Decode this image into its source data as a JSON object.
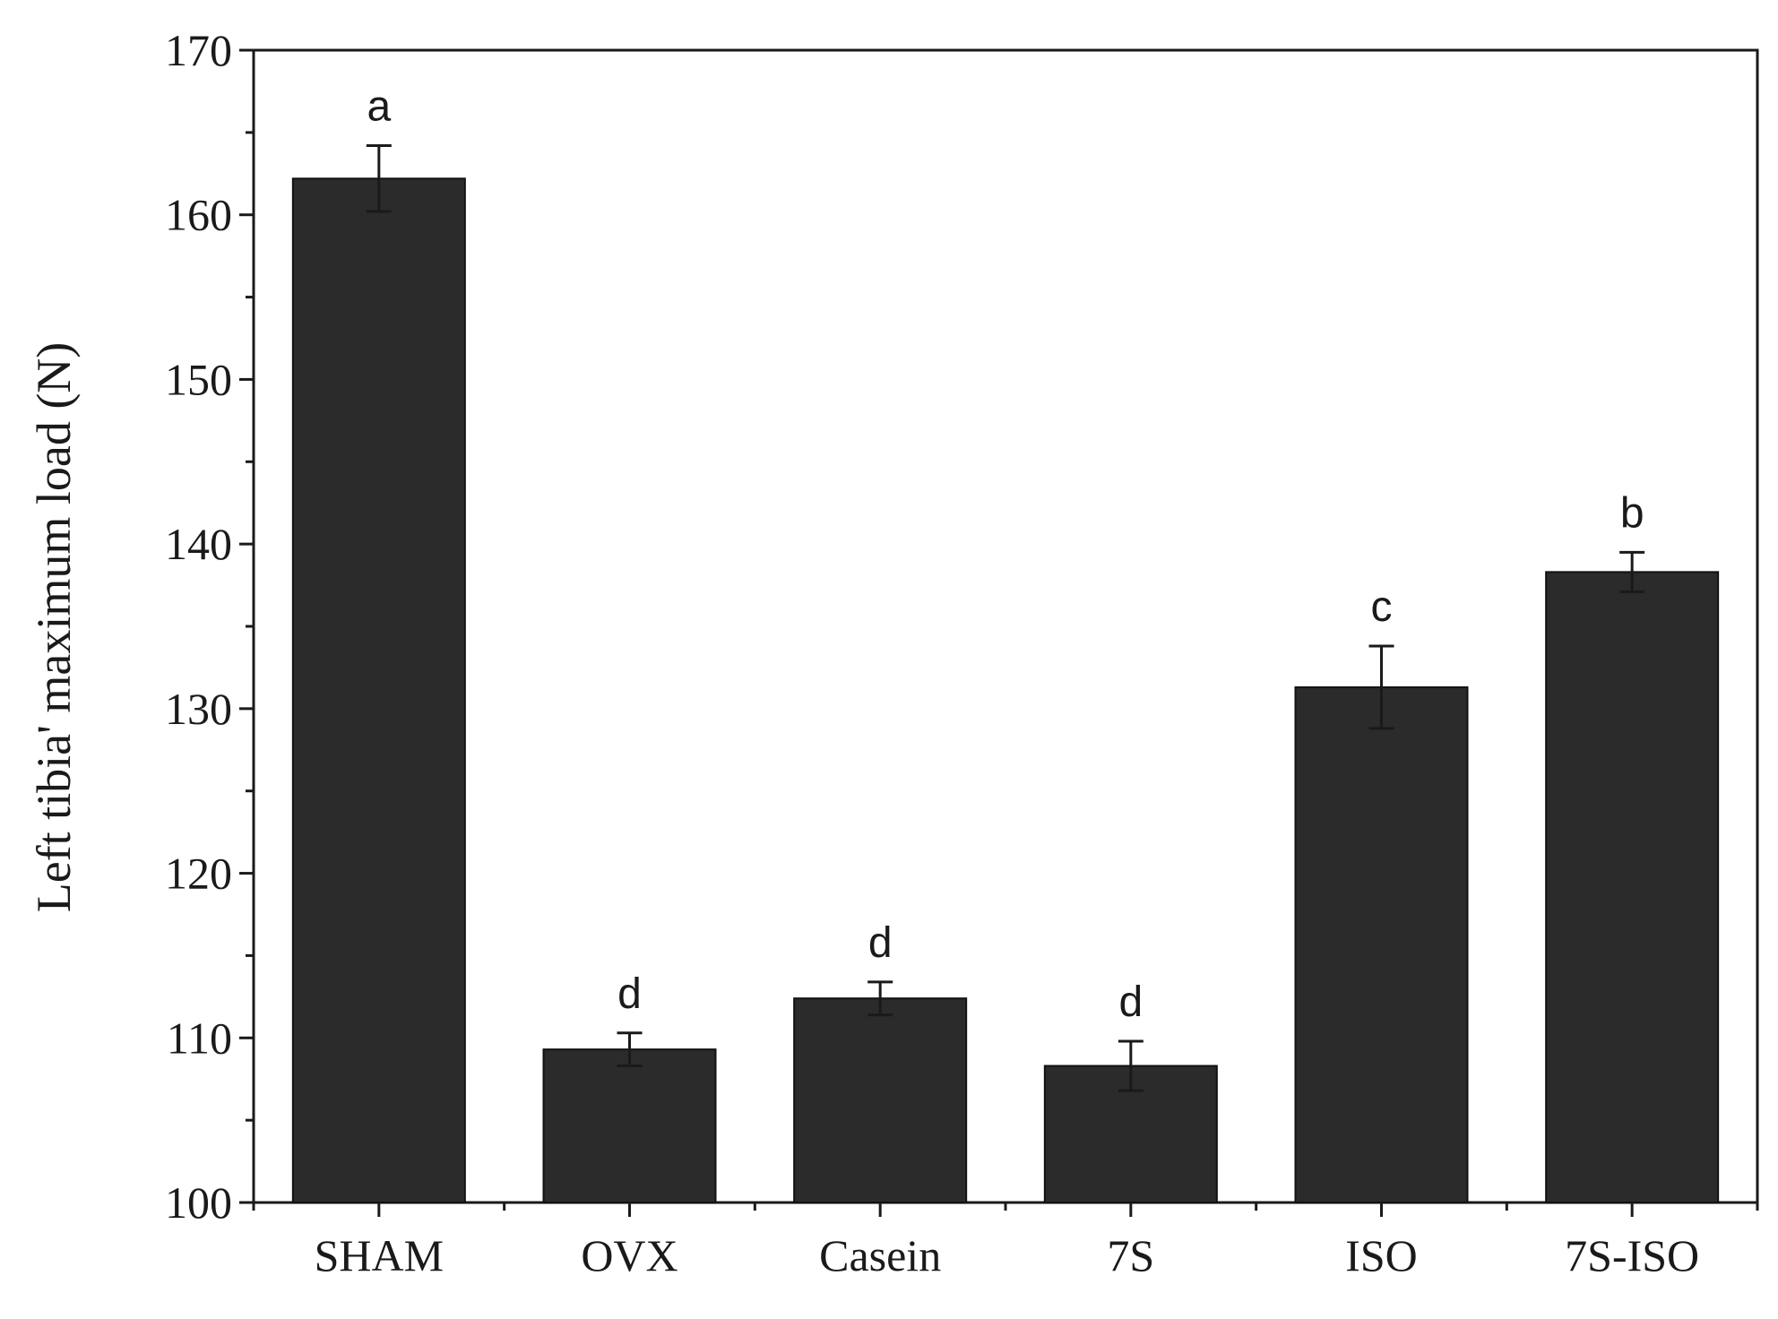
{
  "chart_data": {
    "type": "bar",
    "title": "",
    "xlabel": "",
    "ylabel": "Left tibia' maximum load (N)",
    "categories": [
      "SHAM",
      "OVX",
      "Casein",
      "7S",
      "ISO",
      "7S-ISO"
    ],
    "values": [
      162.2,
      109.3,
      112.4,
      108.3,
      131.3,
      138.3
    ],
    "errors": [
      2.0,
      1.0,
      1.0,
      1.5,
      2.5,
      1.2
    ],
    "significance": [
      "a",
      "d",
      "d",
      "d",
      "c",
      "b"
    ],
    "ylim": [
      100,
      170
    ],
    "yticks": [
      100,
      110,
      120,
      130,
      140,
      150,
      160,
      170
    ],
    "grid": false,
    "bar_color": "#2b2b2b"
  }
}
